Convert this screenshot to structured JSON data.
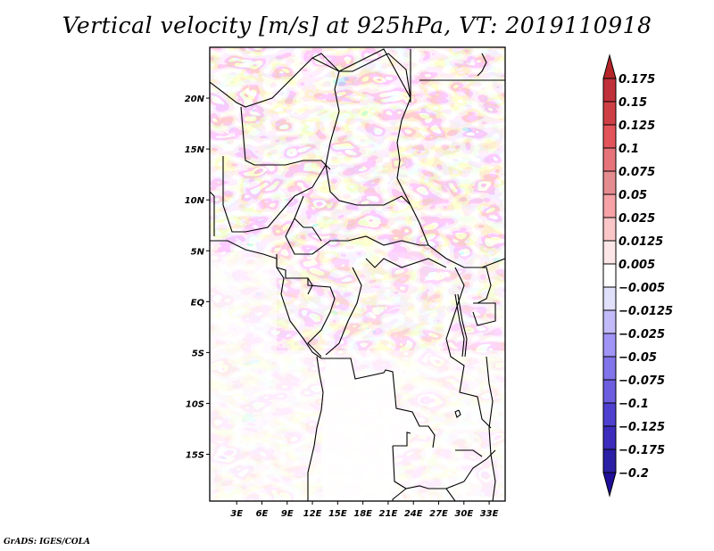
{
  "title": "Vertical velocity [m/s] at 925hPa, VT: 2019110918",
  "footer": "GrADS: IGES/COLA",
  "map": {
    "region": "Central Africa",
    "lon_range": [
      -0.2,
      34.9
    ],
    "lat_range": [
      -19.6,
      25.0
    ],
    "lat_ticks": [
      {
        "value": 20,
        "label": "20N"
      },
      {
        "value": 15,
        "label": "15N"
      },
      {
        "value": 10,
        "label": "10N"
      },
      {
        "value": 5,
        "label": "5N"
      },
      {
        "value": 0,
        "label": "EQ"
      },
      {
        "value": -5,
        "label": "5S"
      },
      {
        "value": -10,
        "label": "10S"
      },
      {
        "value": -15,
        "label": "15S"
      }
    ],
    "lon_ticks": [
      {
        "value": 3,
        "label": "3E"
      },
      {
        "value": 6,
        "label": "6E"
      },
      {
        "value": 9,
        "label": "9E"
      },
      {
        "value": 12,
        "label": "12E"
      },
      {
        "value": 15,
        "label": "15E"
      },
      {
        "value": 18,
        "label": "18E"
      },
      {
        "value": 21,
        "label": "21E"
      },
      {
        "value": 24,
        "label": "24E"
      },
      {
        "value": 27,
        "label": "27E"
      },
      {
        "value": 30,
        "label": "30E"
      },
      {
        "value": 33,
        "label": "33E"
      }
    ]
  },
  "colorbar": {
    "levels": [
      "0.175",
      "0.15",
      "0.125",
      "0.1",
      "0.075",
      "0.05",
      "0.025",
      "0.0125",
      "0.005",
      "-0.005",
      "-0.0125",
      "-0.025",
      "-0.05",
      "-0.075",
      "-0.1",
      "-0.125",
      "-0.175",
      "-0.2"
    ],
    "colors": [
      "#b4262a",
      "#c0303a",
      "#ce3f45",
      "#e25459",
      "#e6737a",
      "#e58c90",
      "#f6a2a6",
      "#fac6c8",
      "#fde6e7",
      "#ffffff",
      "#e0e0fb",
      "#c2bbf9",
      "#a194f7",
      "#8274ea",
      "#6d5ee0",
      "#4f40d0",
      "#3d2cbc",
      "#2b1fa6",
      "#1f0f99"
    ]
  }
}
